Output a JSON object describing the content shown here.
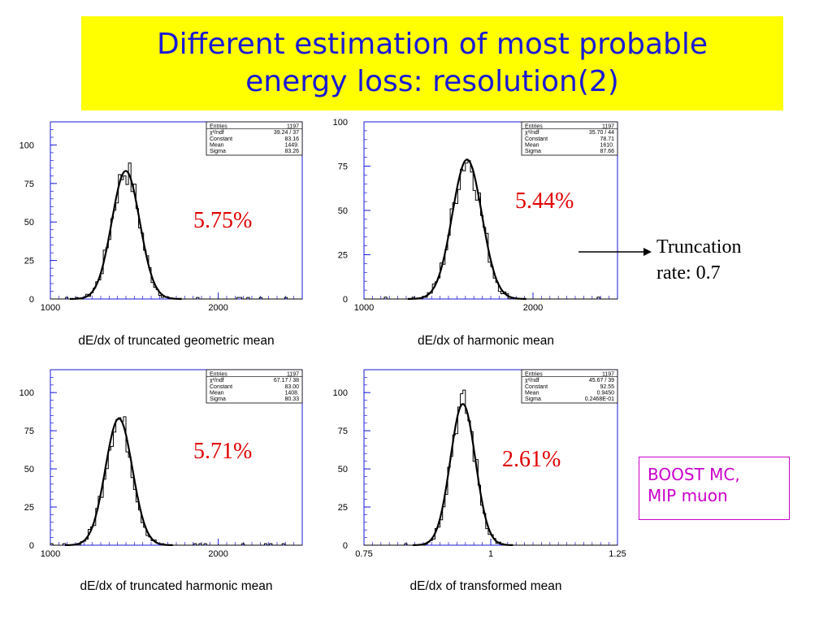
{
  "title": {
    "line1": "Different estimation of most probable",
    "line2": "energy loss: resolution(2)"
  },
  "annotations": {
    "truncation_line1": "Truncation",
    "truncation_line2": "rate: 0.7",
    "box_line1": "BOOST MC,",
    "box_line2": "MIP muon"
  },
  "colors": {
    "title_bg": "#ffff00",
    "title_text": "#1a1ad6",
    "frame": "#1a1ad6",
    "resolution_text": "#e00000",
    "box": "#cc00cc"
  },
  "chart_data": [
    {
      "type": "histogram",
      "caption": "dE/dx of truncated geometric mean",
      "resolution": "5.75%",
      "x_ticks": [
        "1000",
        "2000"
      ],
      "x_tick_values": [
        1000,
        2000
      ],
      "xlim": [
        1000,
        2500
      ],
      "y_ticks": [
        "0",
        "25",
        "50",
        "75",
        "100"
      ],
      "y_tick_values": [
        0,
        25,
        50,
        75,
        100
      ],
      "ylim": [
        0,
        115
      ],
      "fit": {
        "constant": 83.16,
        "mean": 1449,
        "sigma": 83.26
      },
      "stats": [
        {
          "label": "Entries",
          "value": "1197"
        },
        {
          "label": "χ²/ndf",
          "value": "39.24  /   37"
        },
        {
          "label": "Constant",
          "value": "83.16"
        },
        {
          "label": "Mean",
          "value": "1449."
        },
        {
          "label": "Sigma",
          "value": "83.26"
        }
      ]
    },
    {
      "type": "histogram",
      "caption": "dE/dx of harmonic mean",
      "resolution": "5.44%",
      "x_ticks": [
        "1000",
        "2000"
      ],
      "x_tick_values": [
        1000,
        2000
      ],
      "xlim": [
        1000,
        2500
      ],
      "y_ticks": [
        "0",
        "25",
        "50",
        "75",
        "100"
      ],
      "y_tick_values": [
        0,
        25,
        50,
        75,
        100
      ],
      "ylim": [
        0,
        100
      ],
      "fit": {
        "constant": 78.71,
        "mean": 1610,
        "sigma": 87.66
      },
      "stats": [
        {
          "label": "Entries",
          "value": "1197"
        },
        {
          "label": "χ²/ndf",
          "value": "35.70  /   44"
        },
        {
          "label": "Constant",
          "value": "78.71"
        },
        {
          "label": "Mean",
          "value": "1610."
        },
        {
          "label": "Sigma",
          "value": "87.66"
        }
      ]
    },
    {
      "type": "histogram",
      "caption": "dE/dx of truncated harmonic mean",
      "resolution": "5.71%",
      "x_ticks": [
        "1000",
        "2000"
      ],
      "x_tick_values": [
        1000,
        2000
      ],
      "xlim": [
        1000,
        2500
      ],
      "y_ticks": [
        "0",
        "25",
        "50",
        "75",
        "100"
      ],
      "y_tick_values": [
        0,
        25,
        50,
        75,
        100
      ],
      "ylim": [
        0,
        115
      ],
      "fit": {
        "constant": 83.0,
        "mean": 1408,
        "sigma": 80.33
      },
      "stats": [
        {
          "label": "Entries",
          "value": "1197"
        },
        {
          "label": "χ²/ndf",
          "value": "67.17  /   38"
        },
        {
          "label": "Constant",
          "value": "83.00"
        },
        {
          "label": "Mean",
          "value": "1408."
        },
        {
          "label": "Sigma",
          "value": "80.33"
        }
      ]
    },
    {
      "type": "histogram",
      "caption": "dE/dx of transformed mean",
      "resolution": "2.61%",
      "x_ticks": [
        "0.75",
        "1",
        "1.25"
      ],
      "x_tick_values": [
        0.75,
        1.0,
        1.25
      ],
      "xlim": [
        0.75,
        1.25
      ],
      "y_ticks": [
        "0",
        "25",
        "50",
        "75",
        "100"
      ],
      "y_tick_values": [
        0,
        25,
        50,
        75,
        100
      ],
      "ylim": [
        0,
        115
      ],
      "fit": {
        "constant": 92.55,
        "mean": 0.945,
        "sigma": 0.02468
      },
      "stats": [
        {
          "label": "Entries",
          "value": "1197"
        },
        {
          "label": "χ²/ndf",
          "value": "45.67  /   39"
        },
        {
          "label": "Constant",
          "value": "92.55"
        },
        {
          "label": "Mean",
          "value": "0.9450"
        },
        {
          "label": "Sigma",
          "value": "0.2468E-01"
        }
      ]
    }
  ]
}
